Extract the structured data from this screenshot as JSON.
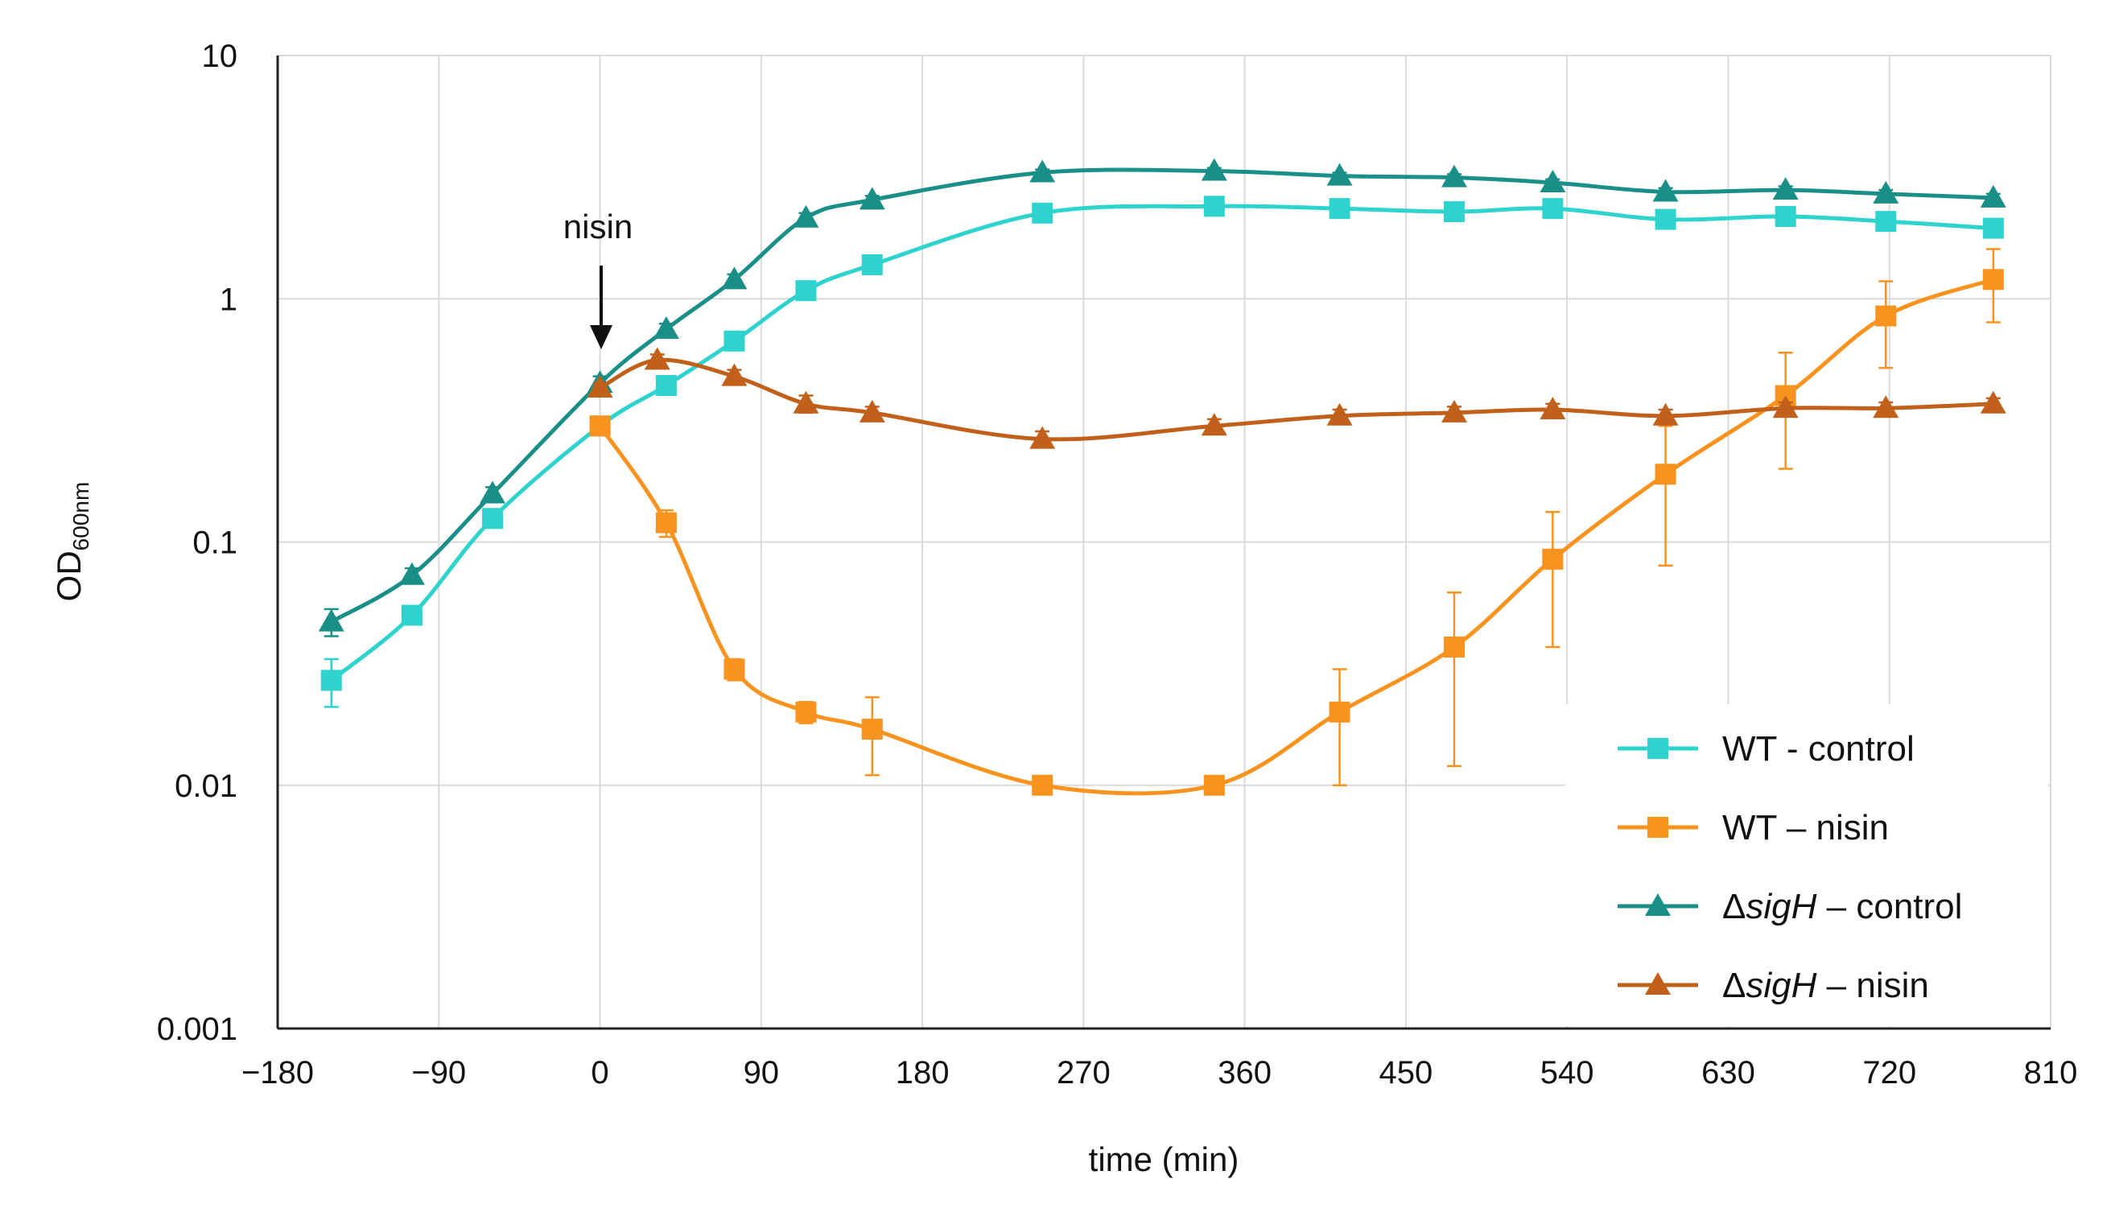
{
  "chart_data": {
    "type": "line",
    "title": "",
    "xlabel": "time (min)",
    "ylabel": "OD",
    "ylabel_sub": "600nm",
    "xlim": [
      -180,
      810
    ],
    "ylim": [
      0.001,
      10
    ],
    "yscale": "log",
    "grid": true,
    "legend_position": "bottom-right",
    "x_ticks": [
      -180,
      -90,
      0,
      90,
      180,
      270,
      360,
      450,
      540,
      630,
      720,
      810
    ],
    "x_tick_labels": [
      "−180",
      "−90",
      "0",
      "90",
      "180",
      "270",
      "360",
      "450",
      "540",
      "630",
      "720",
      "810"
    ],
    "y_ticks": [
      0.001,
      0.01,
      0.1,
      1,
      10
    ],
    "y_tick_labels": [
      "0.001",
      "0.01",
      "0.1",
      "1",
      "10"
    ],
    "annotation": {
      "text": "nisin",
      "x": 0
    },
    "series": [
      {
        "name": "WT - control",
        "legend_prefix": "",
        "legend_italic": "",
        "legend_suffix": "WT - control",
        "marker": "square",
        "color": "#2ED3CE",
        "x": [
          -150,
          -105,
          -60,
          0,
          37,
          75,
          115,
          152,
          247,
          343,
          413,
          477,
          532,
          595,
          662,
          718,
          778
        ],
        "y": [
          0.027,
          0.05,
          0.125,
          0.3,
          0.44,
          0.67,
          1.08,
          1.38,
          2.25,
          2.4,
          2.35,
          2.28,
          2.35,
          2.12,
          2.18,
          2.08,
          1.95
        ],
        "err": [
          0.006,
          0.004,
          0.01,
          0.02,
          0.03,
          0.05,
          0.08,
          0.1,
          0.12,
          0.12,
          0.12,
          0.12,
          0.12,
          0.12,
          0.12,
          0.12,
          0.12
        ]
      },
      {
        "name": "WT – nisin",
        "legend_prefix": "",
        "legend_italic": "",
        "legend_suffix": "WT – nisin",
        "marker": "square",
        "color": "#F7931E",
        "x": [
          0,
          37,
          75,
          115,
          152,
          247,
          343,
          413,
          477,
          532,
          595,
          662,
          718,
          778
        ],
        "y": [
          0.3,
          0.12,
          0.03,
          0.02,
          0.017,
          0.01,
          0.01,
          0.02,
          0.037,
          0.085,
          0.19,
          0.4,
          0.85,
          1.2
        ],
        "err": [
          0.02,
          0.015,
          0.003,
          0.002,
          0.006,
          0.0007,
          0.0007,
          0.01,
          0.025,
          0.048,
          0.11,
          0.2,
          0.33,
          0.4
        ]
      },
      {
        "name": "ΔsigH – control",
        "legend_prefix": "Δ",
        "legend_italic": "sigH",
        "legend_suffix": " – control",
        "marker": "triangle",
        "color": "#1A8F87",
        "x": [
          -150,
          -105,
          -60,
          0,
          37,
          75,
          115,
          152,
          247,
          343,
          413,
          477,
          532,
          595,
          662,
          718,
          778
        ],
        "y": [
          0.047,
          0.073,
          0.158,
          0.45,
          0.75,
          1.2,
          2.15,
          2.55,
          3.3,
          3.35,
          3.2,
          3.15,
          3.0,
          2.75,
          2.8,
          2.7,
          2.6
        ],
        "err": [
          0.006,
          0.005,
          0.01,
          0.03,
          0.04,
          0.06,
          0.1,
          0.1,
          0.1,
          0.1,
          0.1,
          0.1,
          0.1,
          0.1,
          0.1,
          0.1,
          0.1
        ]
      },
      {
        "name": "ΔsigH – nisin",
        "legend_prefix": "Δ",
        "legend_italic": "sigH",
        "legend_suffix": " – nisin",
        "marker": "triangle",
        "color": "#C0601A",
        "x": [
          0,
          32,
          75,
          115,
          152,
          247,
          343,
          413,
          477,
          532,
          595,
          662,
          718,
          778
        ],
        "y": [
          0.43,
          0.56,
          0.48,
          0.37,
          0.34,
          0.265,
          0.3,
          0.33,
          0.34,
          0.35,
          0.33,
          0.355,
          0.355,
          0.37
        ],
        "err": [
          0.02,
          0.03,
          0.03,
          0.03,
          0.02,
          0.02,
          0.02,
          0.02,
          0.02,
          0.02,
          0.02,
          0.02,
          0.02,
          0.02
        ]
      }
    ]
  }
}
